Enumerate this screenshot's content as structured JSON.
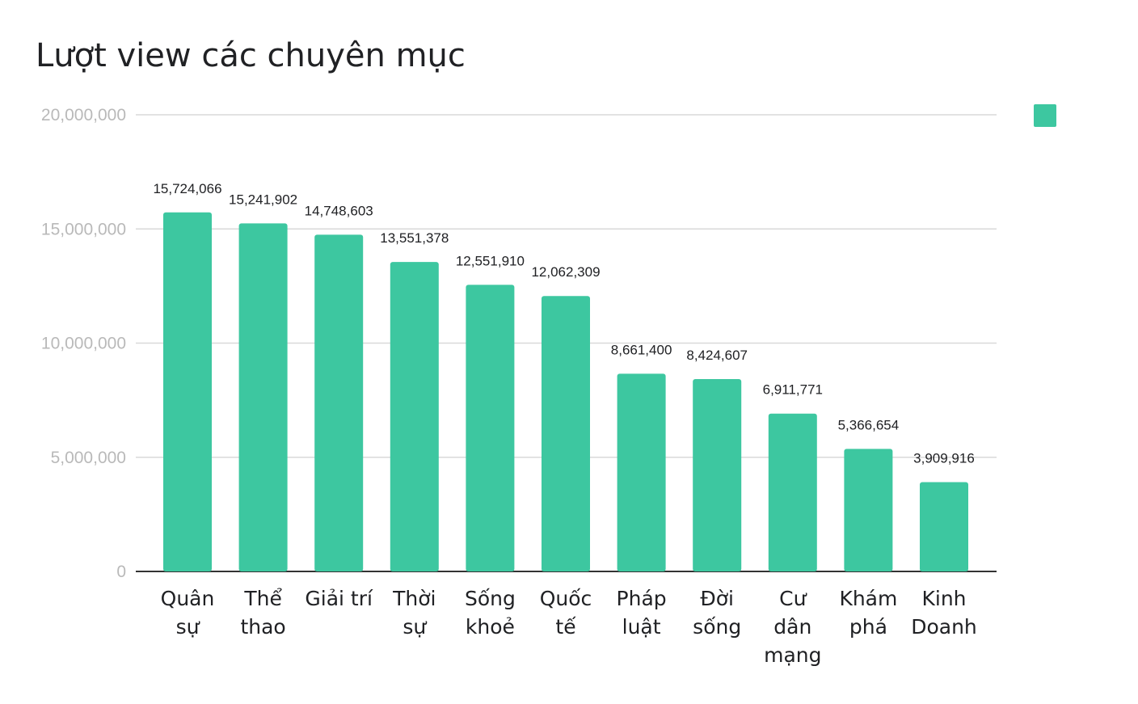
{
  "chart_data": {
    "type": "bar",
    "title": "Lượt view các chuyên mục",
    "categories": [
      [
        "Quân",
        "sự"
      ],
      [
        "Thể",
        "thao"
      ],
      [
        "Giải trí"
      ],
      [
        "Thời",
        "sự"
      ],
      [
        "Sống",
        "khoẻ"
      ],
      [
        "Quốc",
        "tế"
      ],
      [
        "Pháp",
        "luật"
      ],
      [
        "Đời",
        "sống"
      ],
      [
        "Cư",
        "dân",
        "mạng"
      ],
      [
        "Khám",
        "phá"
      ],
      [
        "Kinh",
        "Doanh"
      ]
    ],
    "values": [
      15724066,
      15241902,
      14748603,
      13551378,
      12551910,
      12062309,
      8661400,
      8424607,
      6911771,
      5366654,
      3909916
    ],
    "data_labels": [
      "15,724,066",
      "15,241,902",
      "14,748,603",
      "13,551,378",
      "12,551,910",
      "12,062,309",
      "8,661,400",
      "8,424,607",
      "6,911,771",
      "5,366,654",
      "3,909,916"
    ],
    "y_ticks": [
      0,
      5000000,
      10000000,
      15000000,
      20000000
    ],
    "y_tick_labels": [
      "0",
      "5,000,000",
      "10,000,000",
      "15,000,000",
      "20,000,000"
    ],
    "ylim": [
      0,
      20000000
    ],
    "xlabel": "",
    "ylabel": "",
    "grid": true,
    "legend": {
      "position": "top-right",
      "entries": [
        ""
      ]
    },
    "colors": {
      "bar": "#3dc7a0",
      "grid": "#d9d9d9",
      "axis": "#333333"
    }
  }
}
